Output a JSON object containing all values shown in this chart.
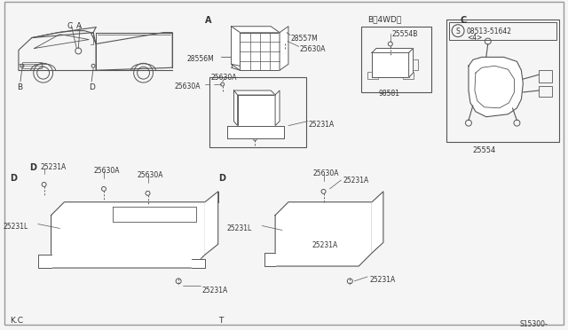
{
  "bg_color": "#f5f5f5",
  "line_color": "#555555",
  "text_color": "#333333",
  "labels": {
    "A": "A",
    "B4WD": "B〨4WD〩",
    "C": "C",
    "D": "D",
    "KC": "K.C",
    "T": "T",
    "s15300": "S15300-",
    "28557M": "28557M",
    "28556M": "28556M",
    "25630A": "25630A",
    "25231A": "25231A",
    "25231L": "25231L",
    "25554B": "25554B",
    "98581": "98581",
    "25554": "25554",
    "08513": "08513-51642",
    "4": "<4>"
  }
}
